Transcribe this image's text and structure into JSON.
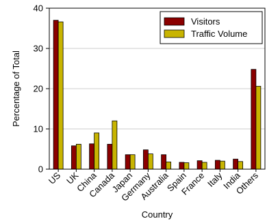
{
  "chart_data": {
    "type": "bar",
    "xlabel": "Country",
    "ylabel": "Percentage of Total",
    "ylim": [
      0,
      40
    ],
    "yticks": [
      0,
      10,
      20,
      30,
      40
    ],
    "grid": "horizontal",
    "legend_position": "top-right",
    "categories": [
      "US",
      "UK",
      "China",
      "Canada",
      "Japan",
      "Germany",
      "Australia",
      "Spain",
      "France",
      "Italy",
      "India",
      "Others"
    ],
    "series": [
      {
        "name": "Visitors",
        "color": "#8b0000",
        "values": [
          37.0,
          5.8,
          6.3,
          6.2,
          3.6,
          4.8,
          3.6,
          1.7,
          2.1,
          2.2,
          2.5,
          24.8
        ]
      },
      {
        "name": "Traffic Volume",
        "color": "#c8b400",
        "values": [
          36.6,
          6.2,
          9.0,
          12.0,
          3.6,
          3.8,
          1.8,
          1.6,
          1.7,
          2.0,
          1.9,
          20.6
        ]
      }
    ]
  }
}
